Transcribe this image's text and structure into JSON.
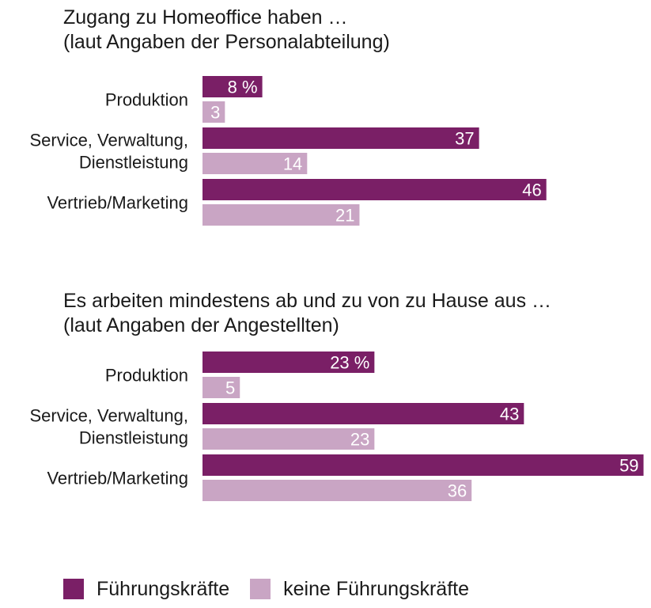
{
  "colors": {
    "primary": "#7a1f66",
    "secondary": "#c9a5c4",
    "text": "#1a1a1a",
    "label_on_bar": "#ffffff"
  },
  "legend": {
    "items": [
      {
        "label": "Führungskräfte",
        "color_key": "primary"
      },
      {
        "label": "keine Führungskräfte",
        "color_key": "secondary"
      }
    ]
  },
  "chart_data": [
    {
      "type": "bar",
      "orientation": "horizontal",
      "title": [
        "Zugang zu Homeoffice haben …",
        "(laut Angaben der Personalabteilung)"
      ],
      "categories": [
        [
          "Produktion"
        ],
        [
          "Service, Verwaltung,",
          "Dienstleistung"
        ],
        [
          "Vertrieb/Marketing"
        ]
      ],
      "series": [
        {
          "name": "Führungskräfte",
          "values": [
            8,
            37,
            46
          ],
          "labels": [
            "8 %",
            "37",
            "46"
          ]
        },
        {
          "name": "keine Führungskräfte",
          "values": [
            3,
            14,
            21
          ],
          "labels": [
            "3",
            "14",
            "21"
          ]
        }
      ],
      "unit": "%"
    },
    {
      "type": "bar",
      "orientation": "horizontal",
      "title": [
        "Es arbeiten mindestens ab und zu von zu Hause aus …",
        "(laut Angaben der Angestellten)"
      ],
      "categories": [
        [
          "Produktion"
        ],
        [
          "Service, Verwaltung,",
          "Dienstleistung"
        ],
        [
          "Vertrieb/Marketing"
        ]
      ],
      "series": [
        {
          "name": "Führungskräfte",
          "values": [
            23,
            43,
            59
          ],
          "labels": [
            "23 %",
            "43",
            "59"
          ]
        },
        {
          "name": "keine Führungskräfte",
          "values": [
            5,
            23,
            36
          ],
          "labels": [
            "5",
            "23",
            "36"
          ]
        }
      ],
      "unit": "%"
    }
  ]
}
